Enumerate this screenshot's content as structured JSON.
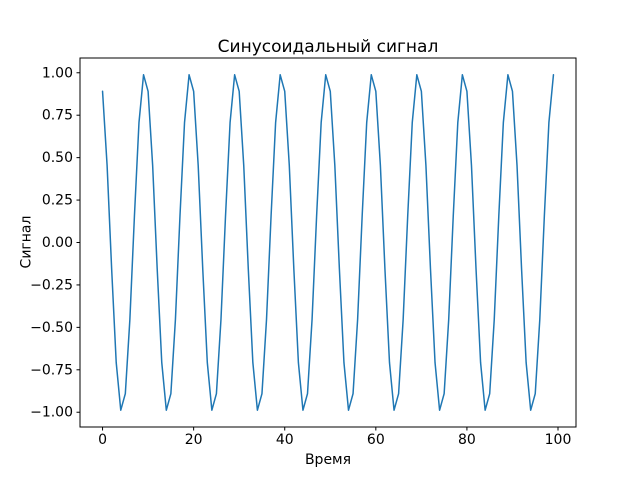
{
  "figure": {
    "background": "#ffffff"
  },
  "chart_data": {
    "type": "line",
    "title": "Синусоидальный сигнал",
    "xlabel": "Время",
    "ylabel": "Сигнал",
    "legend": null,
    "grid": false,
    "line_color": "#1f77b4",
    "line_width": 1.5,
    "axes_color": "#000000",
    "xlim": [
      -4.95,
      103.95
    ],
    "ylim": [
      -1.087,
      1.087
    ],
    "x_ticks": [
      {
        "v": 0,
        "label": "0"
      },
      {
        "v": 20,
        "label": "20"
      },
      {
        "v": 40,
        "label": "40"
      },
      {
        "v": 60,
        "label": "60"
      },
      {
        "v": 80,
        "label": "80"
      },
      {
        "v": 100,
        "label": "100"
      }
    ],
    "y_ticks": [
      {
        "v": 1.0,
        "label": "1.00"
      },
      {
        "v": 0.75,
        "label": "0.75"
      },
      {
        "v": 0.5,
        "label": "0.50"
      },
      {
        "v": 0.25,
        "label": "0.25"
      },
      {
        "v": 0.0,
        "label": "0.00"
      },
      {
        "v": -0.25,
        "label": "−0.25"
      },
      {
        "v": -0.5,
        "label": "−0.50"
      },
      {
        "v": -0.75,
        "label": "−0.75"
      },
      {
        "v": -1.0,
        "label": "−1.00"
      }
    ],
    "x": [
      0,
      1,
      2,
      3,
      4,
      5,
      6,
      7,
      8,
      9,
      10,
      11,
      12,
      13,
      14,
      15,
      16,
      17,
      18,
      19,
      20,
      21,
      22,
      23,
      24,
      25,
      26,
      27,
      28,
      29,
      30,
      31,
      32,
      33,
      34,
      35,
      36,
      37,
      38,
      39,
      40,
      41,
      42,
      43,
      44,
      45,
      46,
      47,
      48,
      49,
      50,
      51,
      52,
      53,
      54,
      55,
      56,
      57,
      58,
      59,
      60,
      61,
      62,
      63,
      64,
      65,
      66,
      67,
      68,
      69,
      70,
      71,
      72,
      73,
      74,
      75,
      76,
      77,
      78,
      79,
      80,
      81,
      82,
      83,
      84,
      85,
      86,
      87,
      88,
      89,
      90,
      91,
      92,
      93,
      94,
      95,
      96,
      97,
      98,
      99
    ],
    "y": [
      0.891,
      0.454,
      -0.156,
      -0.707,
      -0.988,
      -0.891,
      -0.454,
      0.156,
      0.707,
      0.988,
      0.891,
      0.454,
      -0.156,
      -0.707,
      -0.988,
      -0.891,
      -0.454,
      0.156,
      0.707,
      0.988,
      0.891,
      0.454,
      -0.156,
      -0.707,
      -0.988,
      -0.891,
      -0.454,
      0.156,
      0.707,
      0.988,
      0.891,
      0.454,
      -0.156,
      -0.707,
      -0.988,
      -0.891,
      -0.454,
      0.156,
      0.707,
      0.988,
      0.891,
      0.454,
      -0.156,
      -0.707,
      -0.988,
      -0.891,
      -0.454,
      0.156,
      0.707,
      0.988,
      0.891,
      0.454,
      -0.156,
      -0.707,
      -0.988,
      -0.891,
      -0.454,
      0.156,
      0.707,
      0.988,
      0.891,
      0.454,
      -0.156,
      -0.707,
      -0.988,
      -0.891,
      -0.454,
      0.156,
      0.707,
      0.988,
      0.891,
      0.454,
      -0.156,
      -0.707,
      -0.988,
      -0.891,
      -0.454,
      0.156,
      0.707,
      0.988,
      0.891,
      0.454,
      -0.156,
      -0.707,
      -0.988,
      -0.891,
      -0.454,
      0.156,
      0.707,
      0.988,
      0.891,
      0.454,
      -0.156,
      -0.707,
      -0.988,
      -0.891,
      -0.454,
      0.156,
      0.707,
      0.988
    ]
  }
}
